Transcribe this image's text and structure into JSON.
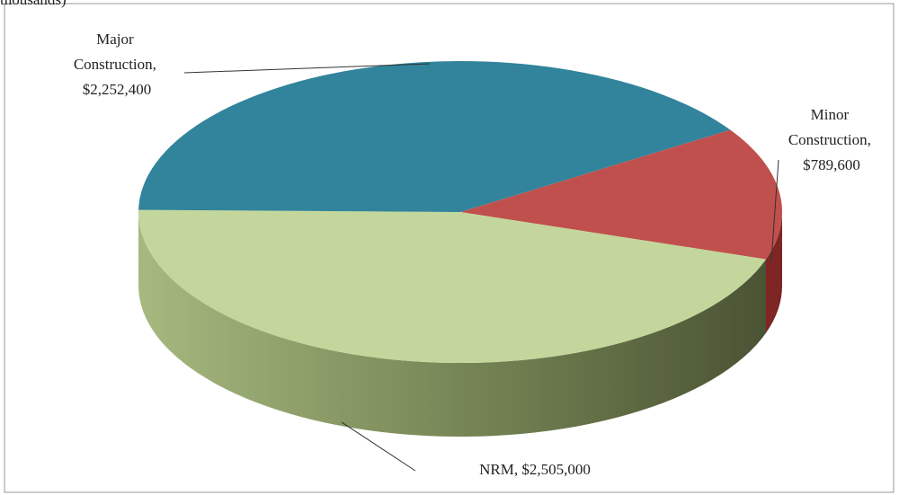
{
  "chart_data": {
    "type": "pie3d",
    "title": "thousands)",
    "values": [
      2252400,
      789600,
      2505000
    ],
    "value_labels": [
      "Major Construction, $2,252,400",
      "Minor Construction, $789,600",
      "NRM, $2,505,000"
    ],
    "colors": [
      "#31849b",
      "#c0504d",
      "#c3d69b"
    ]
  }
}
